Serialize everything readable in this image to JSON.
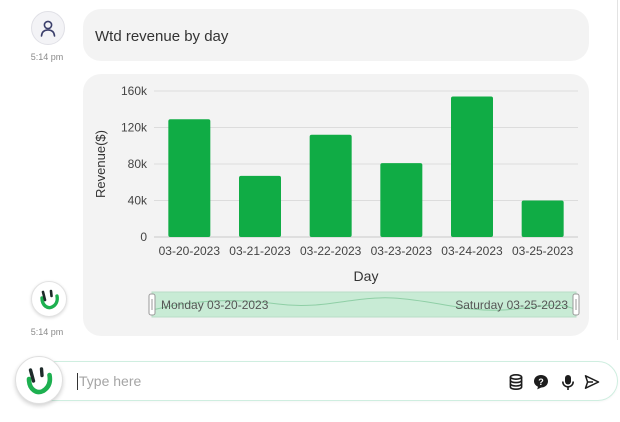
{
  "conversation": {
    "user_message": {
      "text": "Wtd revenue by day",
      "time": "5:14 pm"
    },
    "bot_message": {
      "time": "5:14 pm"
    }
  },
  "chart_data": {
    "type": "bar",
    "categories": [
      "03-20-2023",
      "03-21-2023",
      "03-22-2023",
      "03-23-2023",
      "03-24-2023",
      "03-25-2023"
    ],
    "values": [
      129000,
      67000,
      112000,
      81000,
      154000,
      40000
    ],
    "xlabel": "Day",
    "ylabel": "Revenue($)",
    "ylim": [
      0,
      160000
    ],
    "yticks": [
      0,
      40000,
      80000,
      120000,
      160000
    ],
    "ytick_labels": [
      "0",
      "40k",
      "80k",
      "120k",
      "160k"
    ],
    "grid": true,
    "bar_color": "#10ac45",
    "slider": {
      "start_label": "Monday 03-20-2023",
      "end_label": "Saturday 03-25-2023"
    }
  },
  "input": {
    "placeholder": "Type here",
    "value": ""
  },
  "toolbar": {
    "icons": [
      "database-icon",
      "help-icon",
      "microphone-icon",
      "send-icon"
    ]
  },
  "colors": {
    "accent": "#10ac45",
    "slider_fill": "#c8ebd5",
    "bubble_bg": "#f3f3f3"
  }
}
